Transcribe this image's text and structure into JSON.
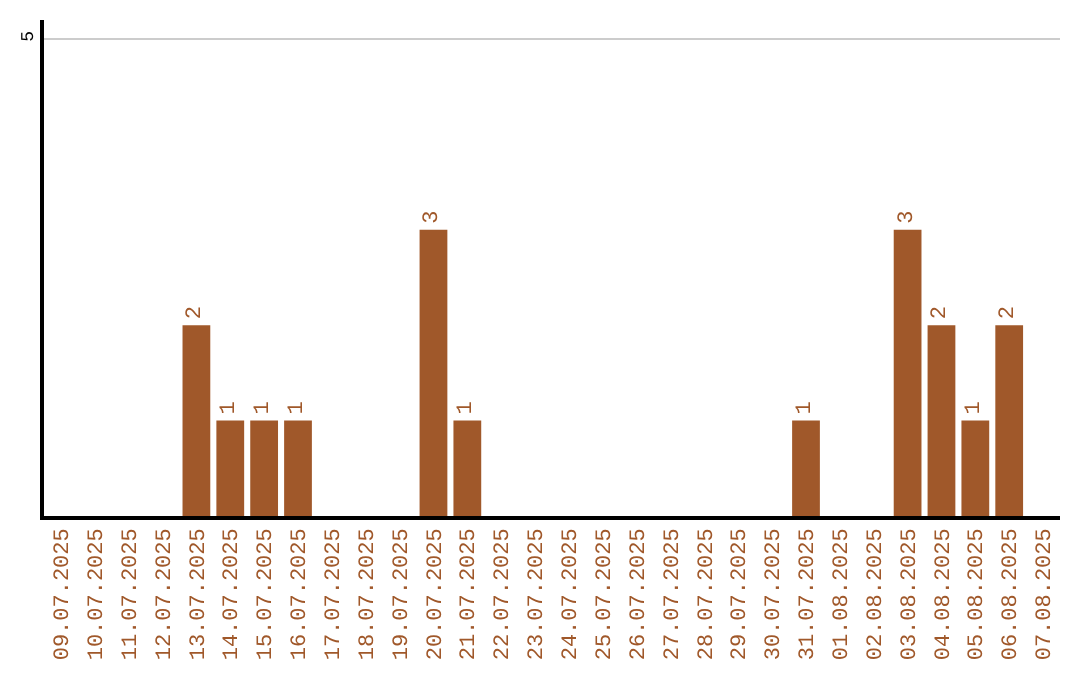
{
  "chart_data": {
    "type": "bar",
    "categories": [
      "09.07.2025",
      "10.07.2025",
      "11.07.2025",
      "12.07.2025",
      "13.07.2025",
      "14.07.2025",
      "15.07.2025",
      "16.07.2025",
      "17.07.2025",
      "18.07.2025",
      "19.07.2025",
      "20.07.2025",
      "21.07.2025",
      "22.07.2025",
      "23.07.2025",
      "24.07.2025",
      "25.07.2025",
      "26.07.2025",
      "27.07.2025",
      "28.07.2025",
      "29.07.2025",
      "30.07.2025",
      "31.07.2025",
      "01.08.2025",
      "02.08.2025",
      "03.08.2025",
      "04.08.2025",
      "05.08.2025",
      "06.08.2025",
      "07.08.2025"
    ],
    "values": [
      0,
      0,
      0,
      0,
      2,
      1,
      1,
      1,
      0,
      0,
      0,
      3,
      1,
      0,
      0,
      0,
      0,
      0,
      0,
      0,
      0,
      0,
      1,
      0,
      0,
      3,
      2,
      1,
      2,
      0
    ],
    "value_labels": [
      null,
      null,
      null,
      null,
      "2",
      "1",
      "1",
      "1",
      null,
      null,
      null,
      "3",
      "1",
      null,
      null,
      null,
      null,
      null,
      null,
      null,
      null,
      null,
      "1",
      null,
      null,
      "3",
      "2",
      "1",
      "2",
      null
    ],
    "color": "#a0582a",
    "ylim": [
      0,
      5.2
    ],
    "yticks": [
      5
    ],
    "grid": "y",
    "legend": false
  }
}
